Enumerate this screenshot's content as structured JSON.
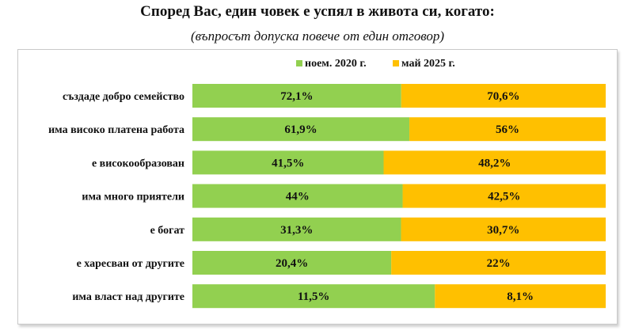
{
  "title": "Според Вас, един човек е успял в живота си, когато:",
  "subtitle": "(въпросът допуска повече от един отговор)",
  "chart_data": {
    "type": "bar",
    "stacked": "100%",
    "orientation": "horizontal",
    "categories": [
      "създаде добро семейство",
      "има високо платена работа",
      "е високообразован",
      "има много приятели",
      "е богат",
      "е харесван от другите",
      "има власт над другите"
    ],
    "series": [
      {
        "name": "ноем. 2020 г.",
        "color": "#92d050",
        "values": [
          72.1,
          61.9,
          41.5,
          44,
          31.3,
          20.4,
          11.5
        ],
        "labels": [
          "72,1%",
          "61,9%",
          "41,5%",
          "44%",
          "31,3%",
          "20,4%",
          "11,5%"
        ]
      },
      {
        "name": "май 2025 г.",
        "color": "#ffc000",
        "values": [
          70.6,
          56,
          48.2,
          42.5,
          30.7,
          22,
          8.1
        ],
        "labels": [
          "70,6%",
          "56%",
          "48,2%",
          "42,5%",
          "30,7%",
          "22%",
          "8,1%"
        ]
      }
    ],
    "legend": "top-center",
    "grid": false
  }
}
